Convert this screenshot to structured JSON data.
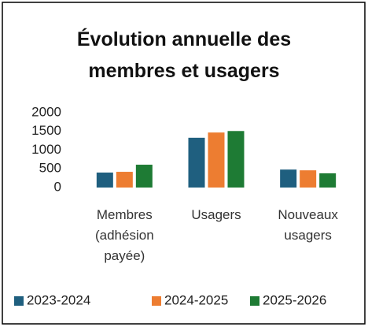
{
  "chart_data": {
    "type": "bar",
    "title": "Évolution annuelle des membres et usagers",
    "categories": [
      "Membres (adhésion payée)",
      "Usagers",
      "Nouveaux usagers"
    ],
    "series": [
      {
        "name": "2023-2024",
        "color": "#1f5f7f",
        "values": [
          400,
          1330,
          480
        ]
      },
      {
        "name": "2024-2025",
        "color": "#ed7d31",
        "values": [
          420,
          1470,
          460
        ]
      },
      {
        "name": "2025-2026",
        "color": "#1e7b34",
        "values": [
          610,
          1510,
          380
        ]
      }
    ],
    "ylim": [
      0,
      2000
    ],
    "yticks": [
      0,
      500,
      1000,
      1500,
      2000
    ],
    "grid": false,
    "legend": "bottom"
  }
}
